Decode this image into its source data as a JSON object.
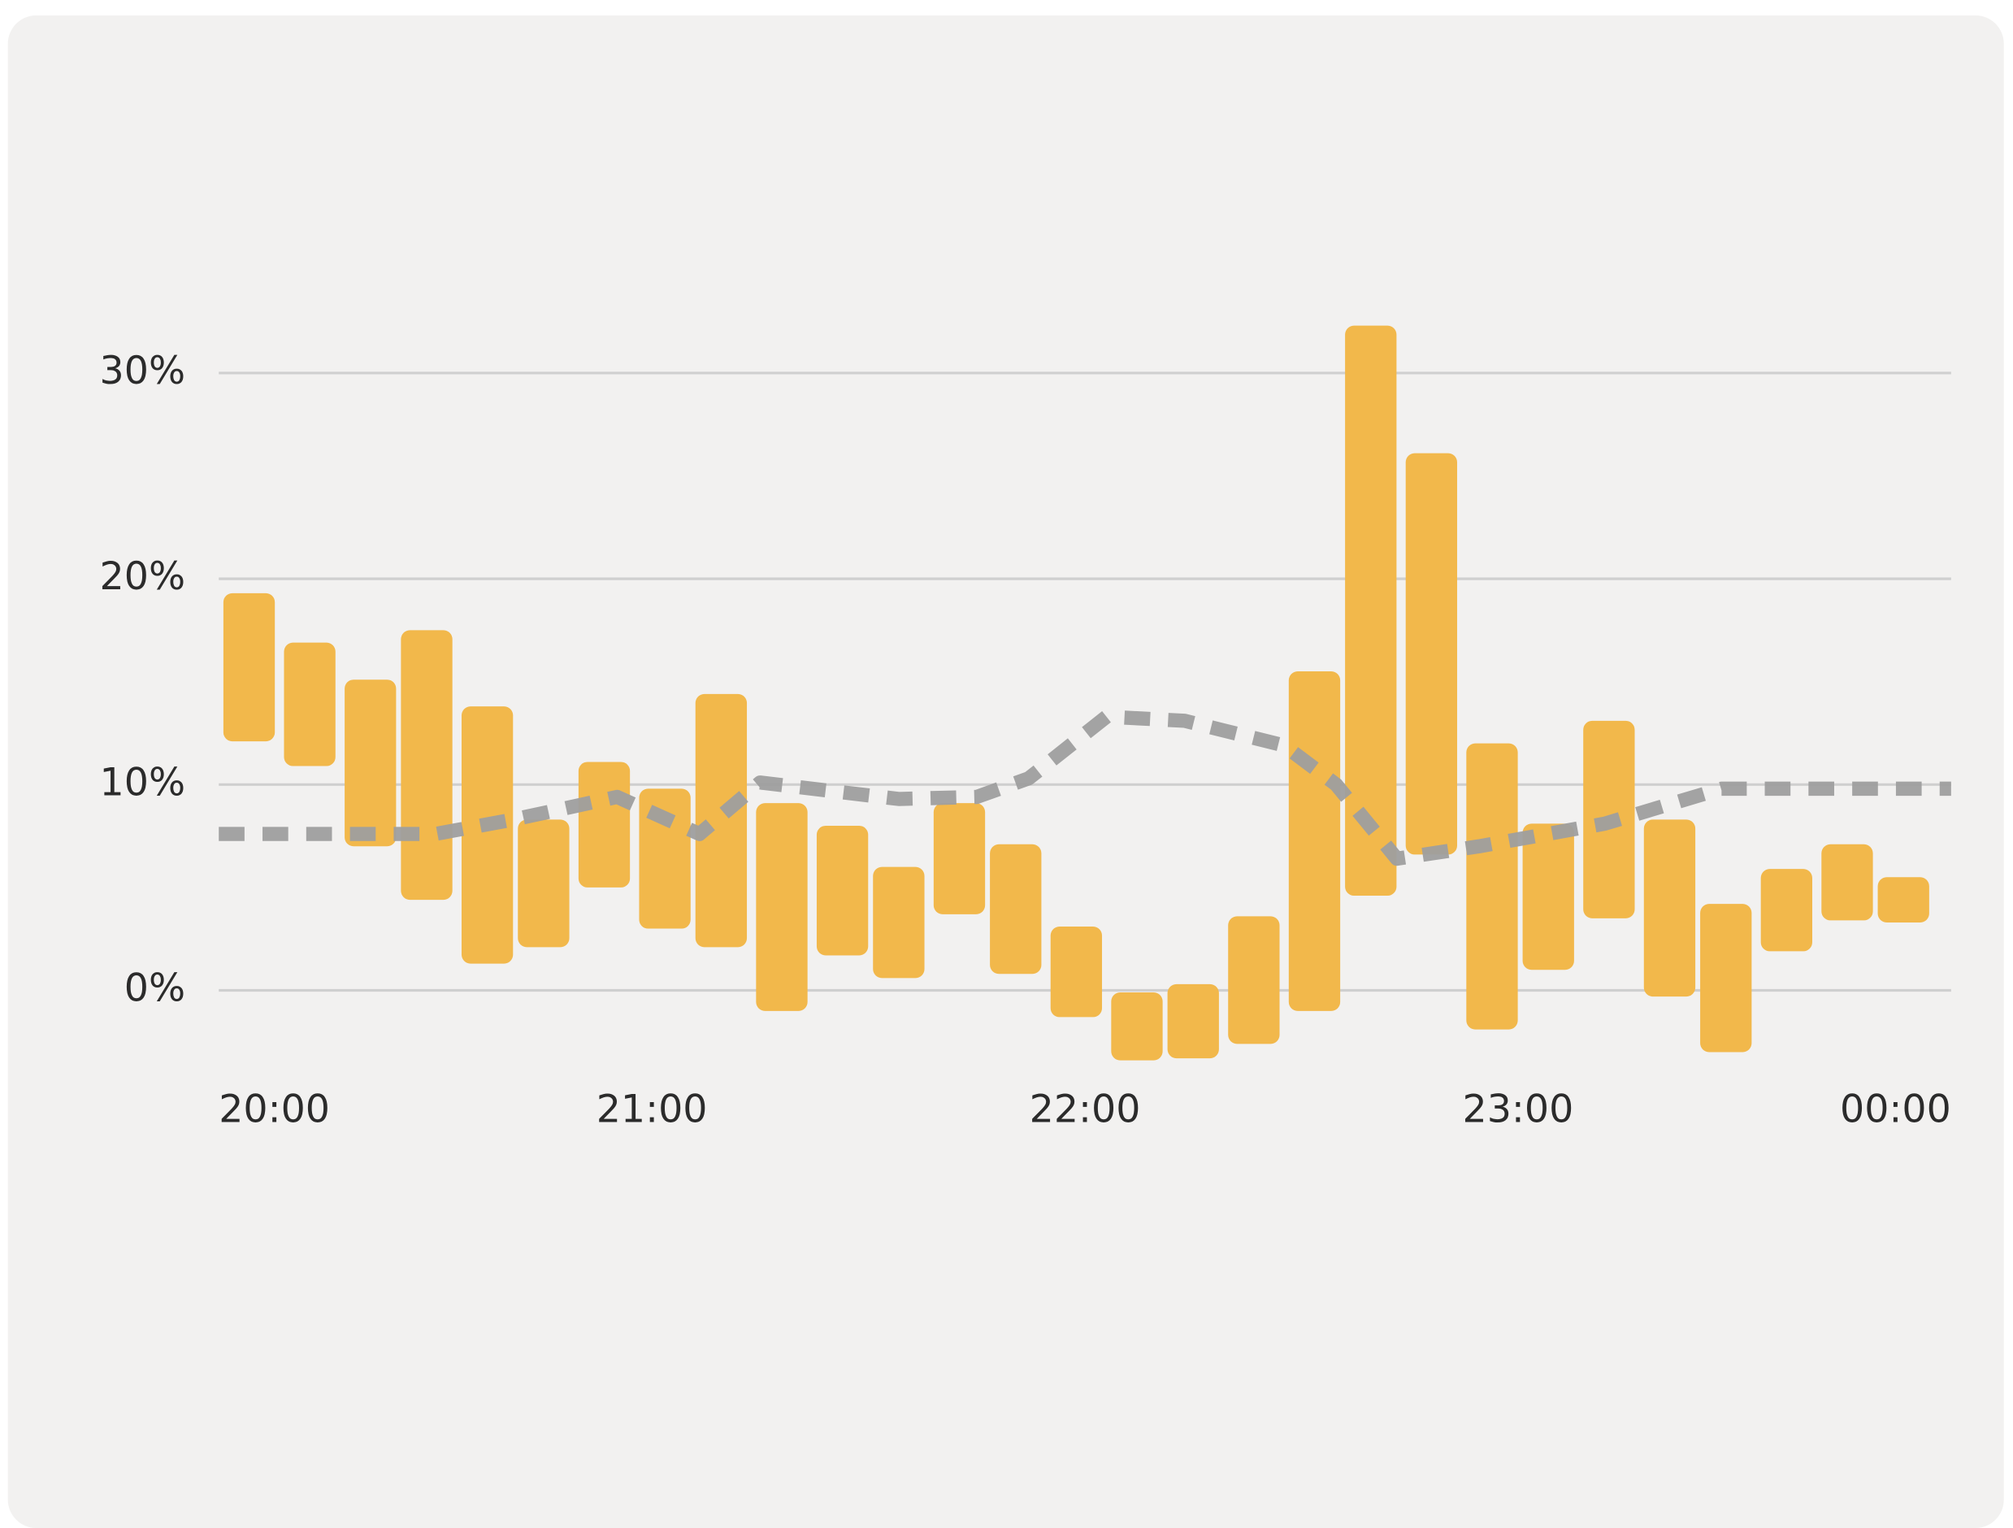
{
  "chart_data": {
    "type": "range-bar",
    "xlim": [
      20,
      24
    ],
    "xticks": [
      {
        "value": 20,
        "label": "20:00"
      },
      {
        "value": 21,
        "label": "21:00"
      },
      {
        "value": 22,
        "label": "22:00"
      },
      {
        "value": 23,
        "label": "23:00"
      },
      {
        "value": 24,
        "label": "00:00"
      }
    ],
    "ylim": [
      -3.5,
      33
    ],
    "yticks": [
      {
        "value": 0,
        "label": "0%"
      },
      {
        "value": 10,
        "label": "10%"
      },
      {
        "value": 20,
        "label": "20%"
      },
      {
        "value": 30,
        "label": "30%"
      }
    ],
    "grid": true,
    "series": [
      {
        "type": "range-bar",
        "color": "#f2b84b",
        "x": [
          20.07,
          20.21,
          20.35,
          20.48,
          20.62,
          20.75,
          20.89,
          21.03,
          21.16,
          21.3,
          21.44,
          21.57,
          21.71,
          21.84,
          21.98,
          22.12,
          22.25,
          22.39,
          22.53,
          22.66,
          22.8,
          22.94,
          23.07,
          23.21,
          23.35,
          23.48,
          23.62,
          23.76,
          23.89
        ],
        "low": [
          12.1,
          10.9,
          7.0,
          4.4,
          1.3,
          2.1,
          5.0,
          3.0,
          2.1,
          -1.0,
          1.7,
          0.6,
          3.7,
          0.8,
          -1.3,
          -3.4,
          -3.3,
          -2.6,
          -1.0,
          4.6,
          6.6,
          -1.9,
          1.0,
          3.5,
          -0.3,
          -3.0,
          1.9,
          3.4,
          3.3
        ],
        "high": [
          19.3,
          16.9,
          15.1,
          17.5,
          13.8,
          8.3,
          11.1,
          9.8,
          14.4,
          9.1,
          8.0,
          6.0,
          9.1,
          7.1,
          3.1,
          -0.1,
          0.3,
          3.6,
          15.5,
          32.3,
          26.1,
          12.0,
          8.1,
          13.1,
          8.3,
          4.2,
          5.9,
          7.1,
          5.5
        ]
      },
      {
        "type": "line",
        "color": "#9e9e9e",
        "x": [
          20.0,
          20.39,
          20.5,
          20.68,
          20.92,
          21.11,
          21.25,
          21.57,
          21.75,
          21.87,
          22.05,
          22.23,
          22.46,
          22.58,
          22.72,
          22.91,
          23.2,
          23.47,
          24.0
        ],
        "values": [
          7.6,
          7.6,
          7.6,
          8.3,
          9.4,
          7.6,
          10.1,
          9.3,
          9.4,
          10.3,
          13.3,
          13.1,
          11.9,
          10.0,
          6.4,
          7.0,
          8.1,
          9.8,
          9.8
        ]
      }
    ]
  }
}
